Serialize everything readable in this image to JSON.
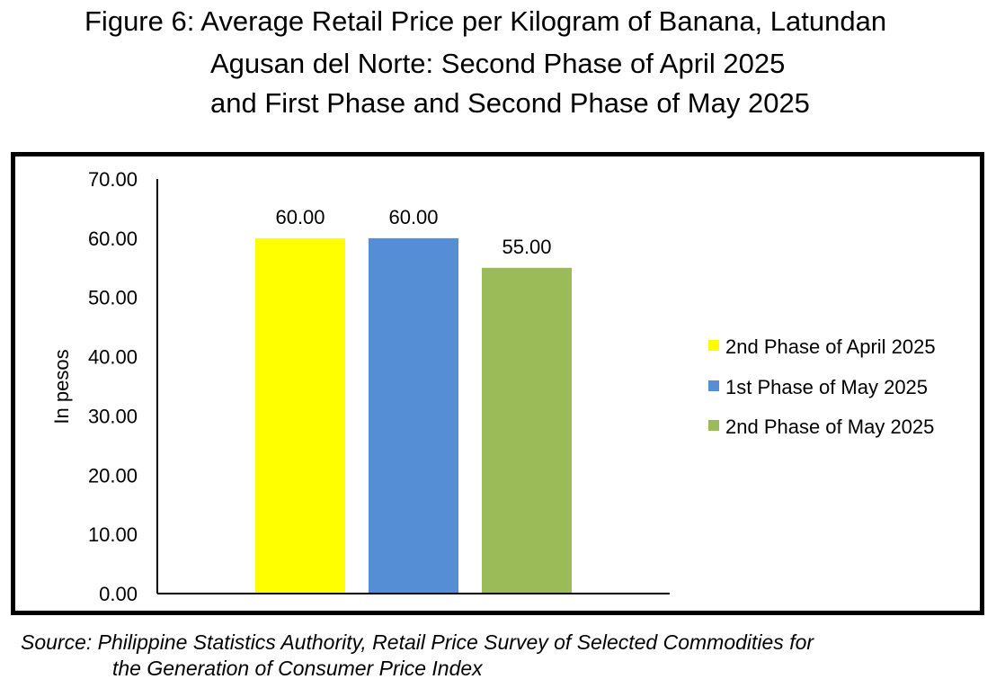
{
  "title": {
    "line1": "Figure 6: Average Retail Price per Kilogram of Banana, Latundan",
    "line2": "Agusan del Norte: Second Phase of April 2025",
    "line3": "and First Phase and Second Phase of May 2025"
  },
  "source": {
    "line1": "Source: Philippine Statistics Authority, Retail Price Survey of Selected Commodities for",
    "line2": "the Generation of Consumer Price Index"
  },
  "chart_data": {
    "type": "bar",
    "ylabel": "In pesos",
    "xlabel": "",
    "ylim": [
      0,
      70
    ],
    "yticks": [
      "0.00",
      "10.00",
      "20.00",
      "30.00",
      "40.00",
      "50.00",
      "60.00",
      "70.00"
    ],
    "grid": false,
    "legend_position": "right",
    "series": [
      {
        "name": "2nd Phase of April 2025",
        "values": [
          60.0
        ],
        "label": "60.00",
        "color": "#FFFF00"
      },
      {
        "name": "1st Phase of May 2025",
        "values": [
          60.0
        ],
        "label": "60.00",
        "color": "#558ED5"
      },
      {
        "name": "2nd Phase of May 2025",
        "values": [
          55.0
        ],
        "label": "55.00",
        "color": "#9BBB59"
      }
    ]
  }
}
